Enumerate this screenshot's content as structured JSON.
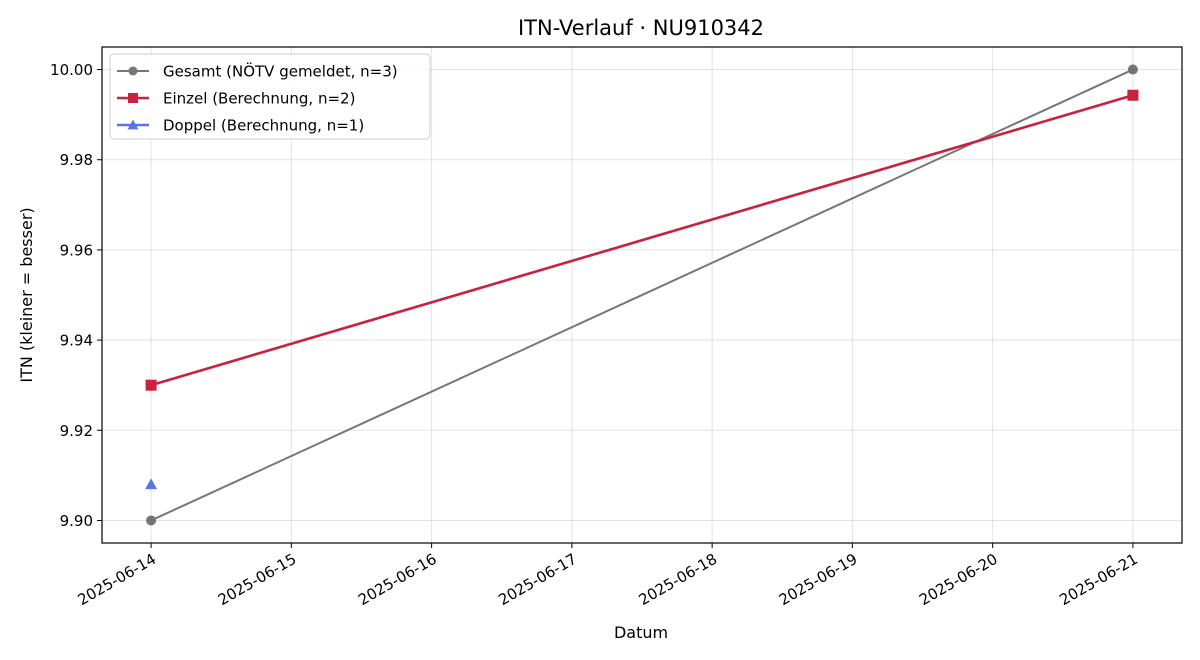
{
  "chart_data": {
    "type": "line",
    "title": "ITN-Verlauf · NU910342",
    "xlabel": "Datum",
    "ylabel": "ITN  (kleiner = besser)",
    "x_ticks": [
      "2025-06-14",
      "2025-06-15",
      "2025-06-16",
      "2025-06-17",
      "2025-06-18",
      "2025-06-19",
      "2025-06-20",
      "2025-06-21"
    ],
    "y_ticks": [
      "9.90",
      "9.92",
      "9.94",
      "9.96",
      "9.98",
      "10.00"
    ],
    "xlim": [
      "2025-06-13T15:36",
      "2025-06-21T08:24"
    ],
    "ylim": [
      9.895,
      10.005
    ],
    "grid": true,
    "legend_position": "top-left",
    "series": [
      {
        "name": "Gesamt (NÖTV gemeldet, n=3)",
        "color": "#555555",
        "marker": "circle",
        "points": [
          {
            "x": "2025-06-14",
            "y": 9.9
          },
          {
            "x": "2025-06-21",
            "y": 10.0
          }
        ]
      },
      {
        "name": "Einzel (Berechnung, n=2)",
        "color": "#c8223f",
        "marker": "square",
        "points": [
          {
            "x": "2025-06-14",
            "y": 9.93
          },
          {
            "x": "2025-06-21",
            "y": 9.9943
          }
        ]
      },
      {
        "name": "Doppel (Berechnung, n=1)",
        "color": "#4e6ee8",
        "marker": "triangle",
        "points": [
          {
            "x": "2025-06-14",
            "y": 9.908
          }
        ]
      }
    ]
  }
}
